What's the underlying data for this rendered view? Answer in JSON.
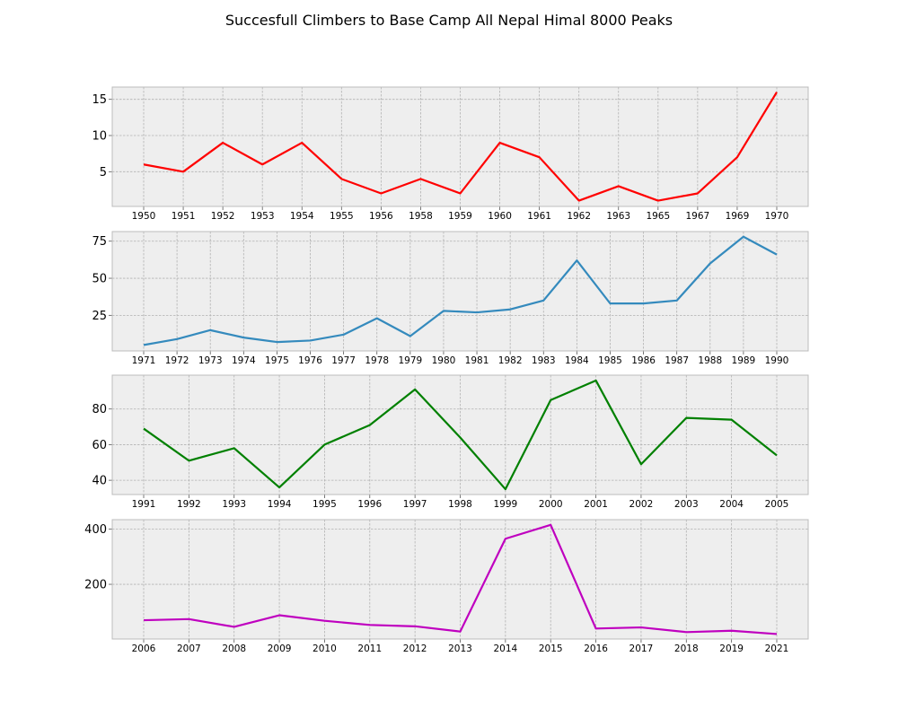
{
  "figure": {
    "title": "Succesfull Climbers to Base Camp All Nepal Himal 8000 Peaks"
  },
  "style": {
    "panel_bg": "#eeeeee",
    "grid_color": "#b2b2b2",
    "frame_color": "#bcbcbc"
  },
  "chart_data": [
    {
      "type": "line",
      "series": [
        {
          "color": "#ff0000",
          "values": [
            6,
            5,
            9,
            6,
            9,
            4,
            2,
            4,
            2,
            9,
            7,
            1,
            3,
            1,
            2,
            7,
            16
          ]
        }
      ],
      "categories": [
        "1950",
        "1951",
        "1952",
        "1953",
        "1954",
        "1955",
        "1956",
        "1958",
        "1959",
        "1960",
        "1961",
        "1962",
        "1963",
        "1965",
        "1967",
        "1969",
        "1970"
      ],
      "ylim": [
        0.2,
        16.7
      ],
      "yticks": [
        5,
        10,
        15
      ],
      "grid": true
    },
    {
      "type": "line",
      "series": [
        {
          "color": "#348abd",
          "values": [
            5,
            9,
            15,
            10,
            7,
            8,
            12,
            23,
            11,
            28,
            27,
            29,
            35,
            62,
            33,
            33,
            35,
            60,
            78,
            66
          ]
        }
      ],
      "categories": [
        "1971",
        "1972",
        "1973",
        "1974",
        "1975",
        "1976",
        "1977",
        "1978",
        "1979",
        "1980",
        "1981",
        "1982",
        "1983",
        "1984",
        "1985",
        "1986",
        "1987",
        "1988",
        "1989",
        "1990"
      ],
      "ylim": [
        1,
        81.5
      ],
      "yticks": [
        25,
        50,
        75
      ],
      "grid": true
    },
    {
      "type": "line",
      "series": [
        {
          "color": "#008000",
          "values": [
            69,
            51,
            58,
            36,
            60,
            71,
            91,
            64,
            35,
            85,
            96,
            49,
            75,
            74,
            54
          ]
        }
      ],
      "categories": [
        "1991",
        "1992",
        "1993",
        "1994",
        "1995",
        "1996",
        "1997",
        "1998",
        "1999",
        "2000",
        "2001",
        "2002",
        "2003",
        "2004",
        "2005"
      ],
      "ylim": [
        32,
        99
      ],
      "yticks": [
        40,
        60,
        80
      ],
      "grid": true
    },
    {
      "type": "line",
      "series": [
        {
          "color": "#bf00bf",
          "values": [
            70,
            74,
            46,
            88,
            68,
            53,
            48,
            29,
            365,
            415,
            40,
            44,
            27,
            32,
            20
          ]
        }
      ],
      "categories": [
        "2006",
        "2007",
        "2008",
        "2009",
        "2010",
        "2011",
        "2012",
        "2013",
        "2014",
        "2015",
        "2016",
        "2017",
        "2018",
        "2019",
        "2021"
      ],
      "ylim": [
        2,
        434
      ],
      "yticks": [
        200,
        400
      ],
      "grid": true
    }
  ]
}
